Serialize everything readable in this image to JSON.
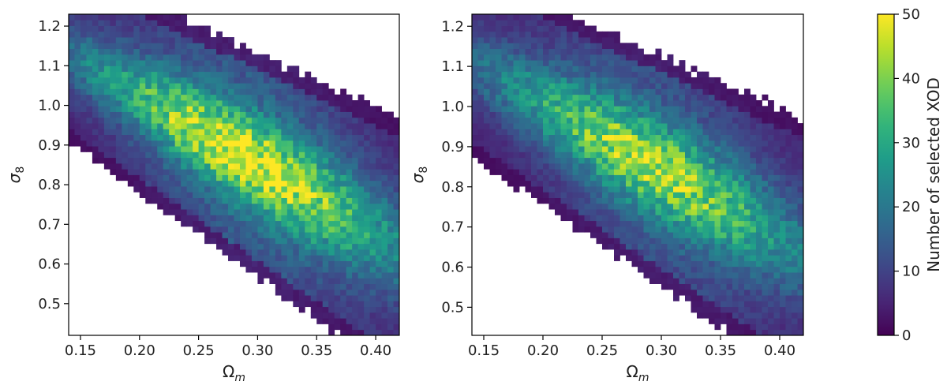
{
  "colormap": "viridis",
  "colorbar": {
    "label": "Number of selected XOD",
    "min": 0,
    "max": 50,
    "ticks": [
      "0",
      "10",
      "20",
      "30",
      "40",
      "50"
    ]
  },
  "chart_data": [
    {
      "type": "heatmap",
      "title": "",
      "xlabel": "Ω",
      "xlabel_sub": "m",
      "ylabel": "σ",
      "ylabel_sub": "8",
      "xlim": [
        0.14,
        0.42
      ],
      "ylim": [
        0.42,
        1.23
      ],
      "xticks": [
        "0.15",
        "0.20",
        "0.25",
        "0.30",
        "0.35",
        "0.40"
      ],
      "yticks": [
        "0.5",
        "0.6",
        "0.7",
        "0.8",
        "0.9",
        "1.0",
        "1.1",
        "1.2"
      ],
      "bins": [
        56,
        56
      ],
      "ridge": {
        "sigma8_at_omega_0_3": 0.85,
        "slope": -0.52
      },
      "peak_counts": 50,
      "peak_omega_m": [
        0.25,
        0.36
      ],
      "band_half_width": [
        0.22,
        0.33
      ]
    },
    {
      "type": "heatmap",
      "title": "",
      "xlabel": "Ω",
      "xlabel_sub": "m",
      "ylabel": "σ",
      "ylabel_sub": "8",
      "xlim": [
        0.14,
        0.42
      ],
      "ylim": [
        0.43,
        1.23
      ],
      "xticks": [
        "0.15",
        "0.20",
        "0.25",
        "0.30",
        "0.35",
        "0.40"
      ],
      "yticks": [
        "0.5",
        "0.6",
        "0.7",
        "0.8",
        "0.9",
        "1.0",
        "1.1",
        "1.2"
      ],
      "bins": [
        56,
        56
      ],
      "ridge": {
        "sigma8_at_omega_0_3": 0.84,
        "slope": -0.5
      },
      "peak_counts": 45,
      "peak_omega_m": [
        0.25,
        0.34
      ],
      "band_half_width": [
        0.23,
        0.33
      ]
    }
  ]
}
